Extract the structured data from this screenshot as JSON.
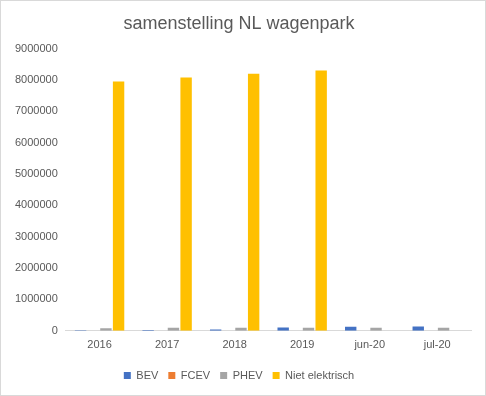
{
  "chart_data": {
    "type": "bar",
    "title": "samenstelling NL wagenpark",
    "categories": [
      "2016",
      "2017",
      "2018",
      "2019",
      "jun-20",
      "jul-20"
    ],
    "series": [
      {
        "name": "BEV",
        "color": "#4472c4",
        "values": [
          14000,
          22000,
          45000,
          105000,
          130000,
          135000
        ]
      },
      {
        "name": "FCEV",
        "color": "#ed7d31",
        "values": [
          40,
          50,
          200,
          300,
          400,
          400
        ]
      },
      {
        "name": "PHEV",
        "color": "#a5a5a5",
        "values": [
          85000,
          95000,
          98000,
          95000,
          100000,
          100000
        ]
      },
      {
        "name": "Niet elektrisch",
        "color": "#ffc000",
        "values": [
          7950000,
          8080000,
          8200000,
          8300000,
          null,
          null
        ]
      }
    ],
    "ylim": [
      0,
      9000000
    ],
    "yticks": [
      0,
      1000000,
      2000000,
      3000000,
      4000000,
      5000000,
      6000000,
      7000000,
      8000000,
      9000000
    ],
    "grid": false,
    "legend": "bottom"
  }
}
